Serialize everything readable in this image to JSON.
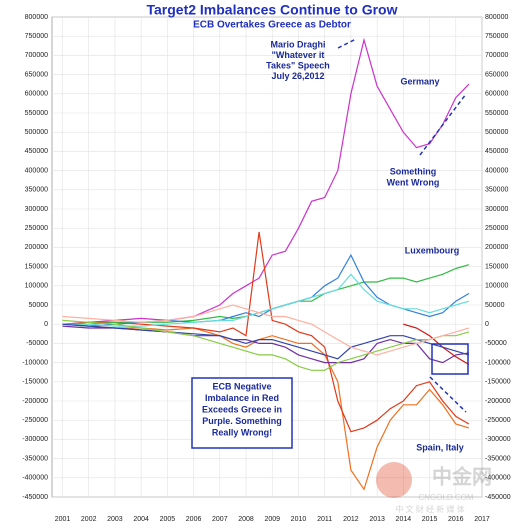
{
  "chart_data": {
    "type": "line",
    "title": "Target2 Imbalances Continue to Grow",
    "subtitle": "ECB Overtakes Greece as Debtor",
    "x": [
      2001,
      2002,
      2003,
      2004,
      2005,
      2006,
      2007,
      2007.5,
      2008,
      2008.5,
      2009,
      2009.5,
      2010,
      2010.5,
      2011,
      2011.5,
      2012,
      2012.5,
      2013,
      2013.5,
      2014,
      2014.5,
      2015,
      2015.5,
      2016,
      2016.5
    ],
    "xlim": [
      2000.6,
      2017
    ],
    "xticks": [
      2001,
      2002,
      2003,
      2004,
      2005,
      2006,
      2007,
      2008,
      2009,
      2010,
      2011,
      2012,
      2013,
      2014,
      2015,
      2016,
      2017
    ],
    "ylim": [
      -450000,
      800000
    ],
    "yticks": [
      800000,
      750000,
      700000,
      650000,
      600000,
      550000,
      500000,
      450000,
      400000,
      350000,
      300000,
      250000,
      200000,
      150000,
      100000,
      50000,
      0,
      -50000,
      -100000,
      -150000,
      -200000,
      -250000,
      -300000,
      -350000,
      -400000,
      -450000
    ],
    "grid": true,
    "series": [
      {
        "color": "#cc33cc",
        "values": [
          0,
          5000,
          10000,
          15000,
          10000,
          20000,
          50000,
          80000,
          100000,
          120000,
          180000,
          190000,
          250000,
          320000,
          330000,
          400000,
          600000,
          740000,
          620000,
          560000,
          500000,
          460000,
          470000,
          520000,
          590000,
          625000
        ]
      },
      {
        "color": "#f07020",
        "values": [
          0,
          -5000,
          -10000,
          -10000,
          -15000,
          -10000,
          -30000,
          -50000,
          -60000,
          -40000,
          -30000,
          -40000,
          -50000,
          -50000,
          -80000,
          -150000,
          -380000,
          -430000,
          -320000,
          -250000,
          -210000,
          -210000,
          -170000,
          -210000,
          -260000,
          -270000
        ]
      },
      {
        "color": "#e03a1a",
        "values": [
          0,
          5000,
          5000,
          0,
          -5000,
          -10000,
          -20000,
          -10000,
          -30000,
          240000,
          10000,
          0,
          -20000,
          -30000,
          -60000,
          -200000,
          -280000,
          -270000,
          -250000,
          -220000,
          -200000,
          -160000,
          -150000,
          -200000,
          -240000,
          -260000
        ]
      },
      {
        "color": "#33bb44",
        "values": [
          0,
          0,
          5000,
          5000,
          5000,
          10000,
          20000,
          15000,
          20000,
          30000,
          40000,
          50000,
          60000,
          60000,
          80000,
          90000,
          100000,
          110000,
          110000,
          120000,
          120000,
          110000,
          120000,
          130000,
          145000,
          155000
        ]
      },
      {
        "color": "#7030a0",
        "values": [
          -5000,
          -10000,
          -10000,
          -15000,
          -20000,
          -30000,
          -30000,
          -40000,
          -40000,
          -50000,
          -50000,
          -60000,
          -80000,
          -90000,
          -100000,
          -100000,
          -100000,
          -90000,
          -50000,
          -40000,
          -50000,
          -50000,
          -90000,
          -100000,
          -80000,
          -75000
        ]
      },
      {
        "color": "#d01010",
        "values": [
          null,
          null,
          null,
          null,
          null,
          null,
          null,
          null,
          null,
          null,
          null,
          null,
          null,
          null,
          null,
          null,
          null,
          null,
          null,
          null,
          0,
          -10000,
          -30000,
          -60000,
          -85000,
          -105000
        ]
      },
      {
        "color": "#3380dd",
        "values": [
          0,
          -5000,
          0,
          5000,
          10000,
          5000,
          10000,
          20000,
          30000,
          20000,
          40000,
          50000,
          60000,
          70000,
          100000,
          120000,
          180000,
          110000,
          70000,
          50000,
          40000,
          30000,
          20000,
          30000,
          60000,
          80000
        ]
      },
      {
        "color": "#66dddd",
        "values": [
          0,
          0,
          -5000,
          -5000,
          0,
          5000,
          10000,
          10000,
          20000,
          30000,
          40000,
          50000,
          60000,
          70000,
          80000,
          90000,
          130000,
          90000,
          60000,
          50000,
          40000,
          40000,
          30000,
          40000,
          50000,
          60000
        ]
      },
      {
        "color": "#3344aa",
        "values": [
          0,
          -5000,
          -10000,
          -15000,
          -20000,
          -25000,
          -30000,
          -40000,
          -50000,
          -40000,
          -40000,
          -50000,
          -60000,
          -70000,
          -80000,
          -90000,
          -60000,
          -50000,
          -40000,
          -30000,
          -30000,
          -40000,
          -50000,
          -60000,
          -70000,
          -80000
        ]
      },
      {
        "color": "#88cc44",
        "values": [
          10000,
          5000,
          0,
          -10000,
          -20000,
          -30000,
          -50000,
          -60000,
          -70000,
          -80000,
          -80000,
          -90000,
          -110000,
          -120000,
          -120000,
          -100000,
          -90000,
          -80000,
          -70000,
          -60000,
          -50000,
          -40000,
          -40000,
          -30000,
          -30000,
          -20000
        ]
      },
      {
        "color": "#ffb0a0",
        "values": [
          20000,
          15000,
          10000,
          5000,
          10000,
          20000,
          40000,
          50000,
          40000,
          30000,
          20000,
          20000,
          10000,
          0,
          -20000,
          -40000,
          -60000,
          -70000,
          -80000,
          -70000,
          -60000,
          -50000,
          -40000,
          -30000,
          -20000,
          -10000
        ]
      }
    ],
    "annotations": {
      "draghi": [
        "Mario Draghi",
        "\"Whatever it",
        "Takes\" Speech",
        "July 26,2012"
      ],
      "germany": "Germany",
      "wrong": [
        "Something",
        "Went Wrong"
      ],
      "luxembourg": "Luxembourg",
      "ecb_box": [
        "ECB Negative",
        "Imbalance in Red",
        "Exceeds Greece in",
        "Purple. Something",
        "Really Wrong!"
      ],
      "spain_italy": "Spain, Italy"
    },
    "watermark": [
      "中金网",
      "CNGOLD.COM",
      "中 文 财 经 新 媒 体"
    ]
  }
}
